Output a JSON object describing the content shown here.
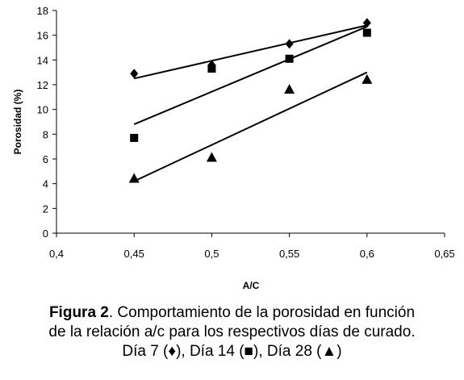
{
  "chart_data": {
    "type": "scatter",
    "xlabel": "A/C",
    "ylabel": "Porosidad (%)",
    "xlim": [
      0.4,
      0.65
    ],
    "ylim": [
      0,
      18
    ],
    "x_ticks": [
      "0,4",
      "0,45",
      "0,5",
      "0,55",
      "0,6",
      "0,65"
    ],
    "y_ticks": [
      "0",
      "2",
      "4",
      "6",
      "8",
      "10",
      "12",
      "14",
      "16",
      "18"
    ],
    "grid": false,
    "series": [
      {
        "marker": "diamond",
        "points": [
          [
            0.45,
            12.9
          ],
          [
            0.5,
            13.6
          ],
          [
            0.55,
            15.3
          ],
          [
            0.6,
            17.0
          ]
        ],
        "trend": [
          [
            0.45,
            12.5
          ],
          [
            0.6,
            16.8
          ]
        ]
      },
      {
        "marker": "square",
        "points": [
          [
            0.45,
            7.7
          ],
          [
            0.5,
            13.3
          ],
          [
            0.55,
            14.1
          ],
          [
            0.6,
            16.2
          ]
        ],
        "trend": [
          [
            0.45,
            8.8
          ],
          [
            0.6,
            16.7
          ]
        ]
      },
      {
        "marker": "triangle",
        "points": [
          [
            0.45,
            4.4
          ],
          [
            0.5,
            6.1
          ],
          [
            0.55,
            11.6
          ],
          [
            0.6,
            12.4
          ]
        ],
        "trend": [
          [
            0.45,
            4.2
          ],
          [
            0.6,
            13.0
          ]
        ]
      }
    ]
  },
  "caption": {
    "label": "Figura 2",
    "line1": ".  Comportamiento de la porosidad en función",
    "line2": "de la relación a/c para los respectivos días de curado.",
    "line3": "Día 7 (♦), Día 14 (■), Día 28 (▲)"
  }
}
